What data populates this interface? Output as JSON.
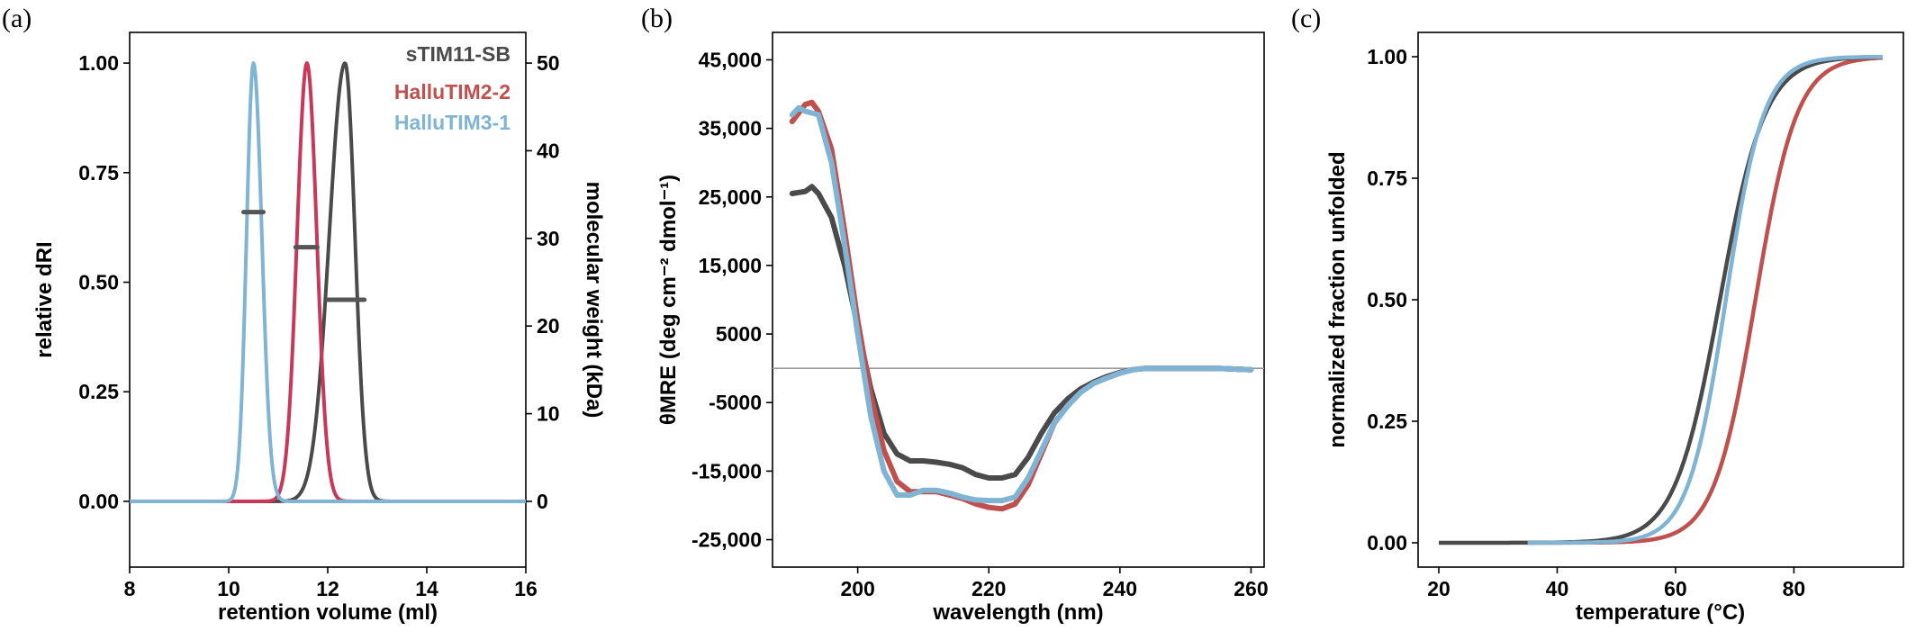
{
  "colors": {
    "sTIM11-SB": "#4a4a4a",
    "HalluTIM2-2": "#c8385a",
    "HalluTIM3-1": "#7fb4d4",
    "HalluTIM2-2_cd": "#c0504d"
  },
  "chart_data": [
    {
      "type": "line",
      "panel_label": "(a)",
      "xlabel": "retention volume (ml)",
      "ylabel": "relative dRI",
      "y2label": "molecular weight (kDa)",
      "xlim": [
        8,
        16
      ],
      "ylim": [
        -0.15,
        1.07
      ],
      "y2lim": [
        -7.5,
        53.5
      ],
      "xticks": [
        "8",
        "10",
        "12",
        "14",
        "16"
      ],
      "yticks": [
        "0.00",
        "0.25",
        "0.50",
        "0.75",
        "1.00"
      ],
      "y2ticks": [
        "0",
        "10",
        "20",
        "30",
        "40",
        "50"
      ],
      "legend": [
        "sTIM11-SB",
        "HalluTIM2-2",
        "HalluTIM3-1"
      ],
      "legend_position": "top-right",
      "series": [
        {
          "name": "sTIM11-SB",
          "peak_x": 12.35,
          "peak_y": 1.0,
          "left_sigma": 0.32,
          "right_sigma": 0.2,
          "mw_kda": 23,
          "mw_range": [
            12.0,
            12.75
          ]
        },
        {
          "name": "HalluTIM2-2",
          "peak_x": 11.58,
          "peak_y": 1.0,
          "left_sigma": 0.2,
          "right_sigma": 0.2,
          "mw_kda": 29,
          "mw_range": [
            11.35,
            11.8
          ]
        },
        {
          "name": "HalluTIM3-1",
          "peak_x": 10.5,
          "peak_y": 1.0,
          "left_sigma": 0.14,
          "right_sigma": 0.17,
          "mw_kda": 33,
          "mw_range": [
            10.3,
            10.7
          ]
        }
      ]
    },
    {
      "type": "line",
      "panel_label": "(b)",
      "xlabel": "wavelength (nm)",
      "ylabel": "θMRE (deg cm⁻² dmol⁻¹)",
      "xlim": [
        187,
        262
      ],
      "ylim": [
        -29000,
        49000
      ],
      "xticks": [
        "200",
        "220",
        "240",
        "260"
      ],
      "yticks": [
        "-25,000",
        "-15,000",
        "-5000",
        "5000",
        "15,000",
        "25,000",
        "35,000",
        "45,000"
      ],
      "grid": "horizontal line at 0",
      "series": [
        {
          "name": "sTIM11-SB",
          "x": [
            190,
            192,
            193,
            194,
            196,
            198,
            200,
            202,
            204,
            206,
            208,
            210,
            212,
            214,
            216,
            218,
            220,
            222,
            224,
            226,
            228,
            230,
            232,
            234,
            236,
            238,
            240,
            242,
            244,
            246,
            250,
            255,
            260
          ],
          "y": [
            25500,
            25800,
            26500,
            25500,
            22000,
            15000,
            6000,
            -3000,
            -9500,
            -12500,
            -13500,
            -13500,
            -13700,
            -14000,
            -14500,
            -15500,
            -16000,
            -16000,
            -15500,
            -13000,
            -9500,
            -6500,
            -4500,
            -3000,
            -2000,
            -1200,
            -600,
            -200,
            0,
            0,
            0,
            0,
            -200
          ]
        },
        {
          "name": "HalluTIM2-2",
          "x": [
            190,
            192,
            193,
            194,
            196,
            198,
            200,
            202,
            204,
            206,
            208,
            210,
            212,
            214,
            216,
            218,
            220,
            222,
            224,
            226,
            228,
            230,
            232,
            234,
            236,
            238,
            240,
            242,
            244,
            246,
            250,
            255,
            260
          ],
          "y": [
            36000,
            38500,
            38800,
            37500,
            32000,
            20000,
            7000,
            -4000,
            -12000,
            -16500,
            -18000,
            -18000,
            -18000,
            -18500,
            -19000,
            -19800,
            -20300,
            -20500,
            -19800,
            -17000,
            -12500,
            -8000,
            -5500,
            -3500,
            -2200,
            -1400,
            -700,
            -200,
            0,
            0,
            0,
            0,
            -200
          ]
        },
        {
          "name": "HalluTIM3-1",
          "x": [
            190,
            191,
            192,
            194,
            196,
            198,
            200,
            202,
            204,
            206,
            208,
            210,
            212,
            214,
            216,
            218,
            220,
            222,
            224,
            226,
            228,
            230,
            232,
            234,
            236,
            238,
            240,
            242,
            244,
            246,
            250,
            255,
            260
          ],
          "y": [
            37000,
            38000,
            37500,
            37000,
            30000,
            18000,
            5000,
            -7000,
            -15000,
            -18500,
            -18500,
            -17800,
            -17800,
            -18200,
            -18800,
            -19200,
            -19300,
            -19300,
            -18800,
            -16000,
            -12000,
            -8000,
            -5500,
            -3500,
            -2200,
            -1400,
            -700,
            -200,
            0,
            0,
            0,
            0,
            -200
          ]
        }
      ]
    },
    {
      "type": "line",
      "panel_label": "(c)",
      "xlabel": "temperature (°C)",
      "ylabel": "normalized fraction unfolded",
      "xlim": [
        16.5,
        98.5
      ],
      "ylim": [
        -0.05,
        1.05
      ],
      "xticks": [
        "20",
        "40",
        "60",
        "80"
      ],
      "yticks": [
        "0.00",
        "0.25",
        "0.50",
        "0.75",
        "1.00"
      ],
      "series": [
        {
          "name": "sTIM11-SB",
          "tm": 67.5,
          "slope": 3.8,
          "x_range": [
            20,
            95
          ]
        },
        {
          "name": "HalluTIM2-2",
          "tm": 73.5,
          "slope": 3.5,
          "x_range": [
            35,
            95
          ]
        },
        {
          "name": "HalluTIM3-1",
          "tm": 68.5,
          "slope": 3.2,
          "x_range": [
            35,
            95
          ]
        }
      ]
    }
  ]
}
